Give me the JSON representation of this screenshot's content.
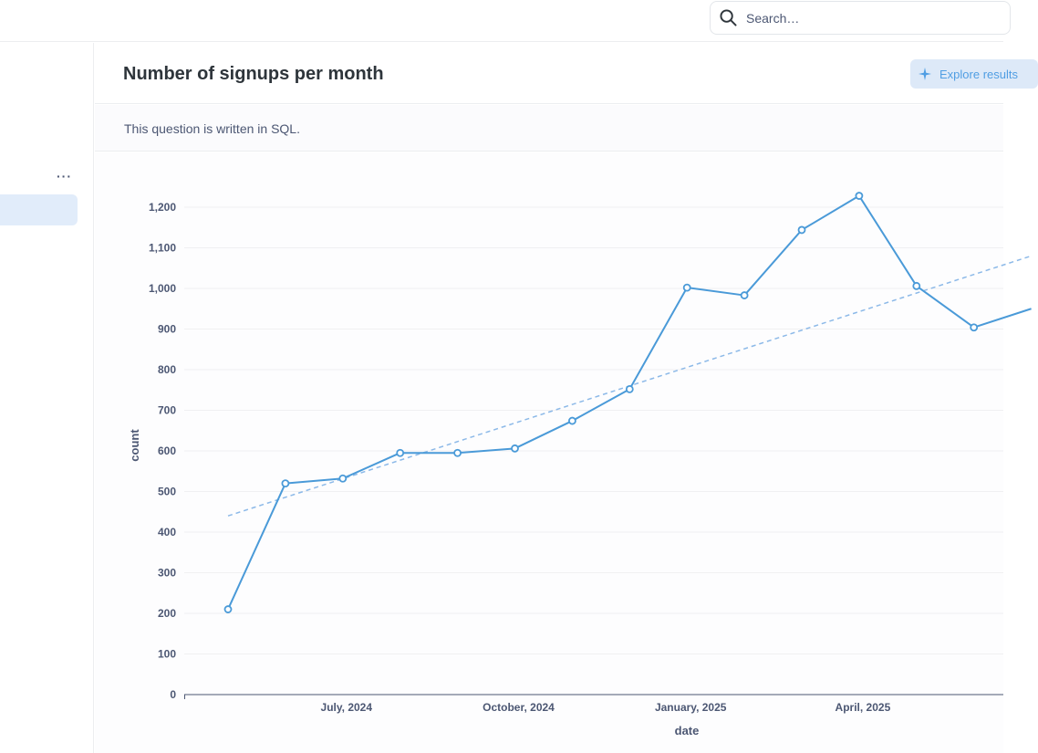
{
  "search": {
    "placeholder": "Search…"
  },
  "sidebar": {
    "more_label": "···"
  },
  "header": {
    "title": "Number of signups per month",
    "explore_label": "Explore results"
  },
  "notice": {
    "sql_text": "This question is written in SQL."
  },
  "colors": {
    "accent": "#509ee3",
    "line": "#4a9ad8",
    "trend": "#8cb9e8"
  },
  "chart_data": {
    "type": "line",
    "xlabel": "date",
    "ylabel": "count",
    "ylim": [
      0,
      1200
    ],
    "yticks": [
      "0",
      "100",
      "200",
      "300",
      "400",
      "500",
      "600",
      "700",
      "800",
      "900",
      "1,000",
      "1,100",
      "1,200"
    ],
    "xticks": [
      "July, 2024",
      "October, 2024",
      "January, 2025",
      "April, 2025"
    ],
    "x": [
      "2024-05",
      "2024-06",
      "2024-07",
      "2024-08",
      "2024-09",
      "2024-10",
      "2024-11",
      "2024-12",
      "2025-01",
      "2025-02",
      "2025-03",
      "2025-04",
      "2025-05",
      "2025-06",
      "2025-07"
    ],
    "series": [
      {
        "values": [
          210,
          520,
          532,
          595,
          595,
          606,
          674,
          752,
          1002,
          983,
          1144,
          1228,
          1006,
          904,
          950
        ]
      }
    ],
    "trendline": {
      "start": 440,
      "end": 1080
    },
    "grid": true,
    "legend": "none"
  }
}
